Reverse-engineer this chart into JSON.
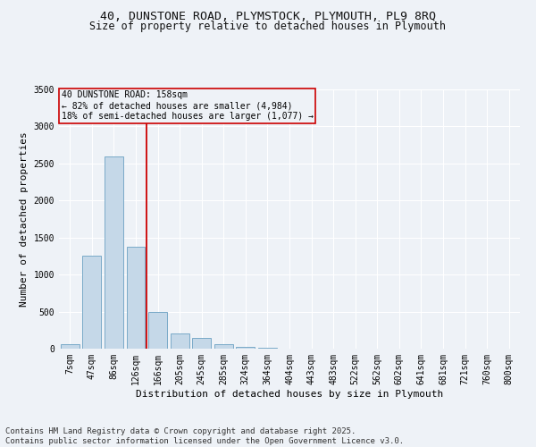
{
  "title_line1": "40, DUNSTONE ROAD, PLYMSTOCK, PLYMOUTH, PL9 8RQ",
  "title_line2": "Size of property relative to detached houses in Plymouth",
  "xlabel": "Distribution of detached houses by size in Plymouth",
  "ylabel": "Number of detached properties",
  "categories": [
    "7sqm",
    "47sqm",
    "86sqm",
    "126sqm",
    "166sqm",
    "205sqm",
    "245sqm",
    "285sqm",
    "324sqm",
    "364sqm",
    "404sqm",
    "443sqm",
    "483sqm",
    "522sqm",
    "562sqm",
    "602sqm",
    "641sqm",
    "681sqm",
    "721sqm",
    "760sqm",
    "800sqm"
  ],
  "values": [
    60,
    1250,
    2600,
    1380,
    490,
    210,
    140,
    55,
    20,
    8,
    3,
    1,
    1,
    0,
    0,
    0,
    0,
    0,
    0,
    0,
    0
  ],
  "bar_color": "#c5d8e8",
  "bar_edge_color": "#7aaac8",
  "vline_color": "#cc0000",
  "annotation_text": "40 DUNSTONE ROAD: 158sqm\n← 82% of detached houses are smaller (4,984)\n18% of semi-detached houses are larger (1,077) →",
  "annotation_box_color": "#cc0000",
  "ylim": [
    0,
    3500
  ],
  "yticks": [
    0,
    500,
    1000,
    1500,
    2000,
    2500,
    3000,
    3500
  ],
  "background_color": "#eef2f7",
  "footer_line1": "Contains HM Land Registry data © Crown copyright and database right 2025.",
  "footer_line2": "Contains public sector information licensed under the Open Government Licence v3.0.",
  "title_fontsize": 9.5,
  "subtitle_fontsize": 8.5,
  "axis_label_fontsize": 8,
  "tick_fontsize": 7,
  "annotation_fontsize": 7,
  "footer_fontsize": 6.5
}
